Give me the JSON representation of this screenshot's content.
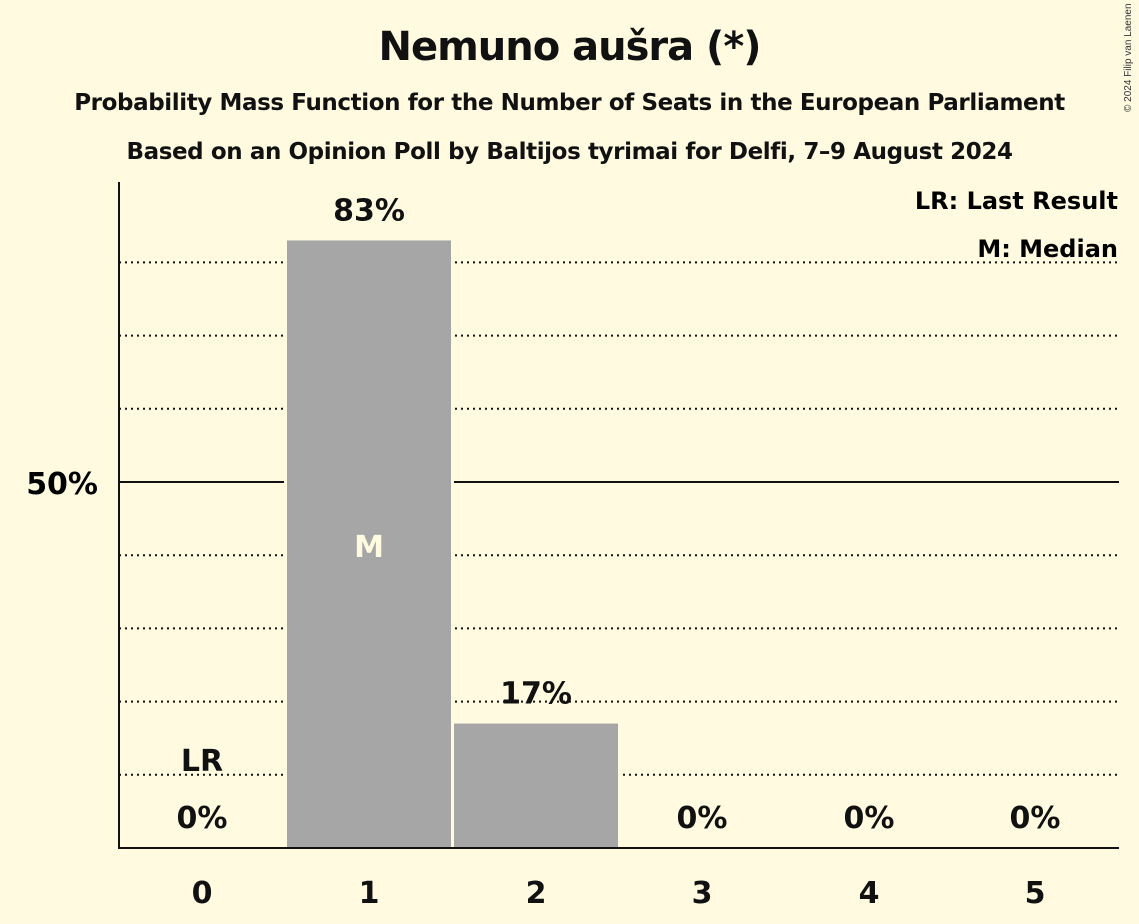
{
  "header": {
    "title": "Nemuno aušra (*)",
    "subtitle1": "Probability Mass Function for the Number of Seats in the European Parliament",
    "subtitle2": "Based on an Opinion Poll by Baltijos tyrimai for Delfi, 7–9 August 2024",
    "copyright": "© 2024 Filip van Laenen"
  },
  "legend": {
    "lr": "LR: Last Result",
    "m": "M: Median"
  },
  "colors": {
    "background": "#fffae0",
    "bar": "#a6a6a6",
    "axis": "#111111",
    "median_label": "#fffae0"
  },
  "chart_data": {
    "type": "bar",
    "title": "Nemuno aušra (*)",
    "subtitle": "Probability Mass Function for the Number of Seats in the European Parliament",
    "xlabel": "",
    "ylabel": "",
    "categories": [
      "0",
      "1",
      "2",
      "3",
      "4",
      "5"
    ],
    "values": [
      0,
      83,
      17,
      0,
      0,
      0
    ],
    "value_labels": [
      "0%",
      "83%",
      "17%",
      "0%",
      "0%",
      "0%"
    ],
    "ylim": [
      0,
      90
    ],
    "y_ticks": [
      {
        "value": 50,
        "label": "50%"
      }
    ],
    "gridlines": [
      10,
      20,
      30,
      40,
      50,
      60,
      70,
      80
    ],
    "solid_gridline": 50,
    "last_result_category": "0",
    "median_category": "1",
    "annotations": {
      "last_result": "LR",
      "median": "M"
    },
    "legend_position": "top-right"
  }
}
